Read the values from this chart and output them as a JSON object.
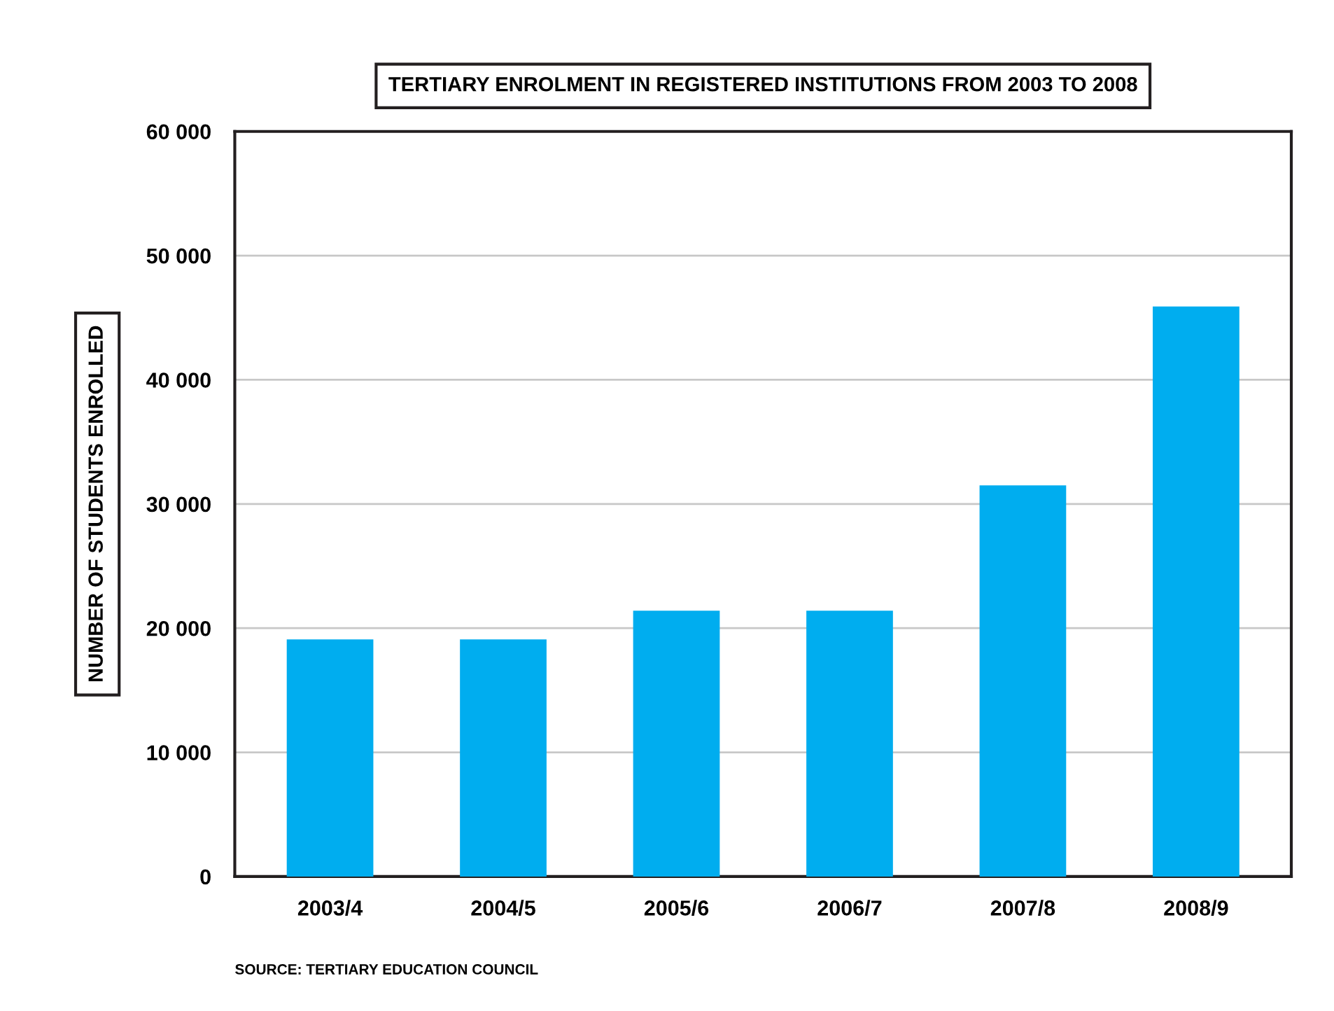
{
  "chart_data": {
    "type": "bar",
    "title": "TERTIARY ENROLMENT IN REGISTERED INSTITUTIONS FROM 2003 TO 2008",
    "ylabel": "NUMBER OF STUDENTS ENROLLED",
    "categories": [
      "2003/4",
      "2004/5",
      "2005/6",
      "2006/7",
      "2007/8",
      "2008/9"
    ],
    "values": [
      19100,
      19100,
      21400,
      21400,
      31500,
      45900
    ],
    "color": "#00adef",
    "ylim": [
      0,
      60000
    ],
    "yticks": [
      {
        "value": 0,
        "label": "0"
      },
      {
        "value": 10000,
        "label": "10 000"
      },
      {
        "value": 20000,
        "label": "20 000"
      },
      {
        "value": 30000,
        "label": "30 000"
      },
      {
        "value": 40000,
        "label": "40 000"
      },
      {
        "value": 50000,
        "label": "50 000"
      },
      {
        "value": 60000,
        "label": "60 000"
      }
    ],
    "grid": "y",
    "legend": false,
    "annotations": [
      "SOURCE: TERTIARY EDUCATION COUNCIL"
    ]
  }
}
